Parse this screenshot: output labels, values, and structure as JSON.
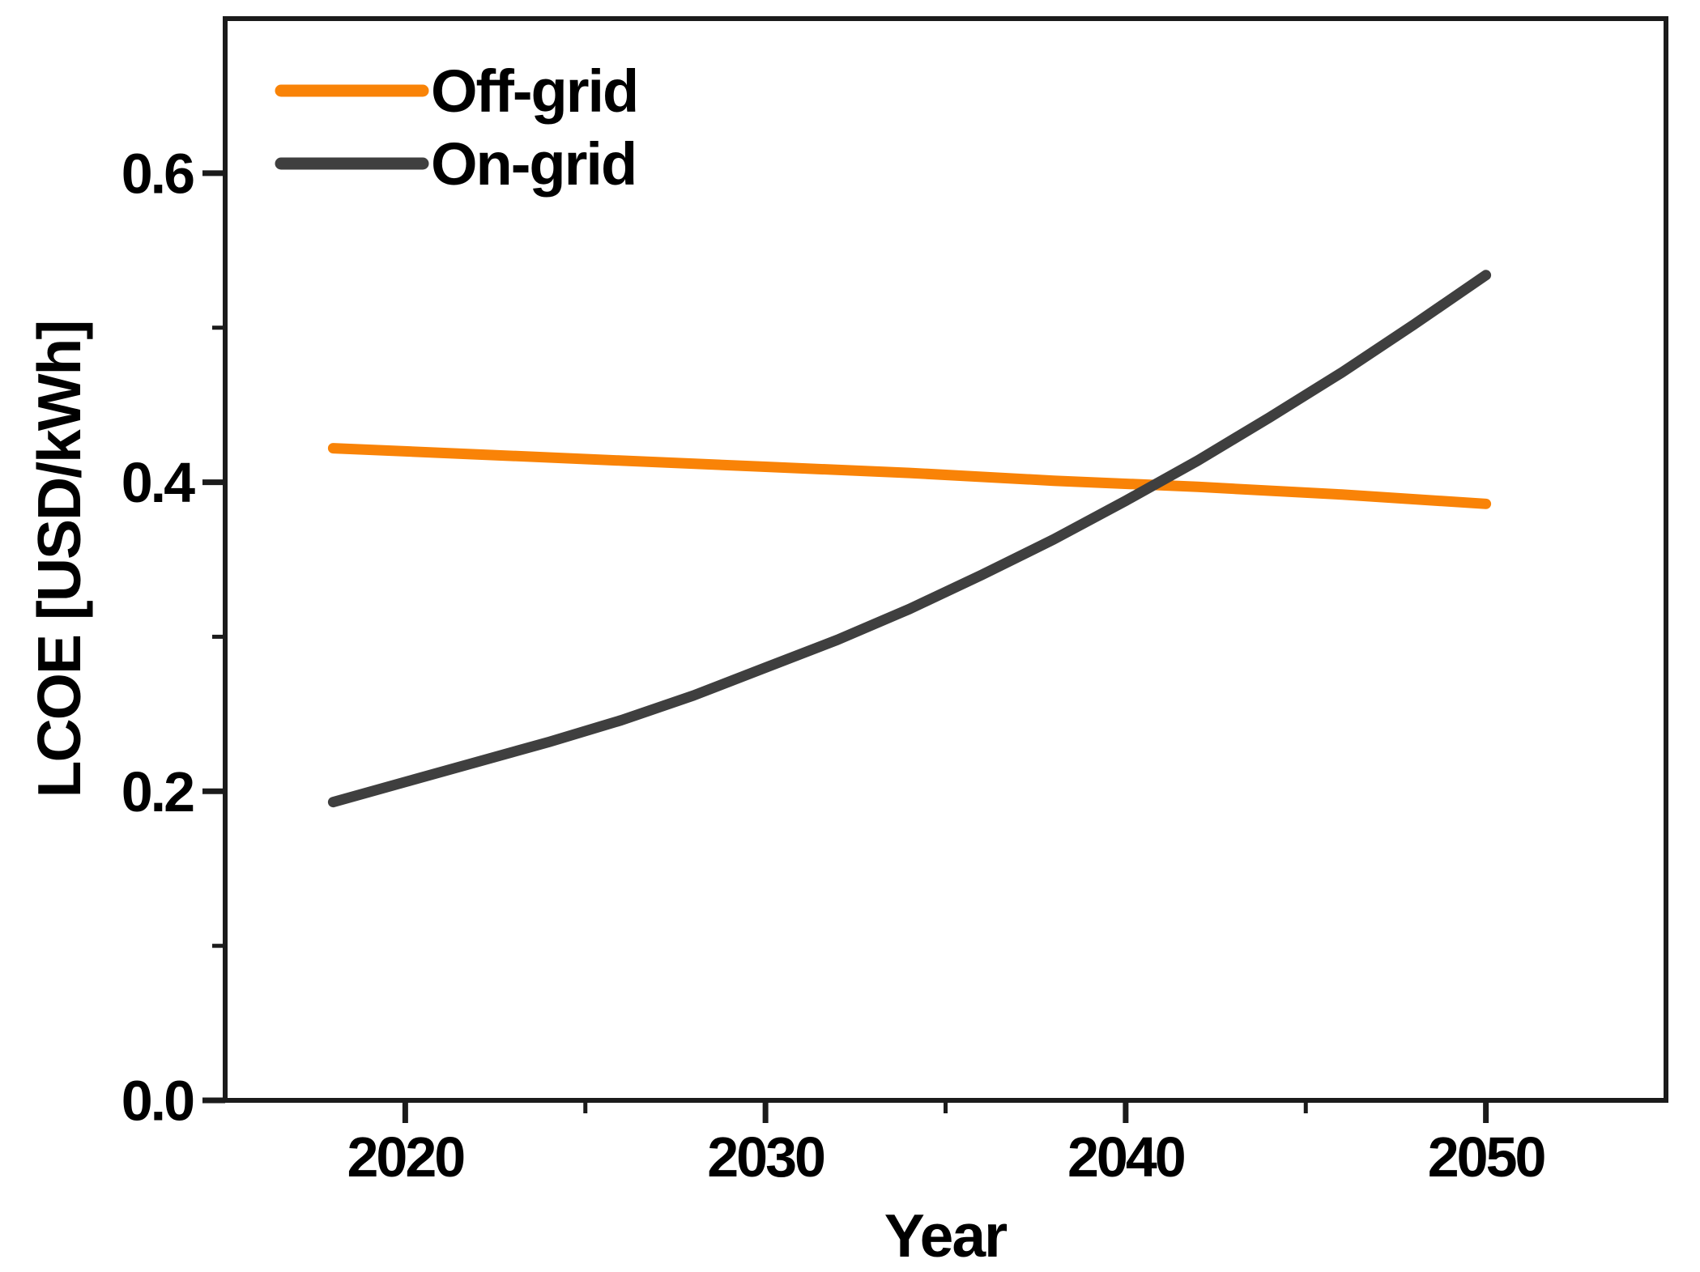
{
  "chart_data": {
    "type": "line",
    "title": "",
    "xlabel": "Year",
    "ylabel": "LCOE [USD/kWh]",
    "xlim": [
      2015,
      2055
    ],
    "ylim": [
      0.0,
      0.7
    ],
    "grid": false,
    "x_major_ticks": {
      "values": [
        2020,
        2030,
        2040,
        2050
      ],
      "labels": [
        "2020",
        "2030",
        "2040",
        "2050"
      ]
    },
    "x_minor_ticks": [
      2025,
      2035,
      2045
    ],
    "y_major_ticks": {
      "values": [
        0.0,
        0.2,
        0.4,
        0.6
      ],
      "labels": [
        "0.0",
        "0.2",
        "0.4",
        "0.6"
      ]
    },
    "y_minor_ticks": [
      0.1,
      0.3,
      0.5
    ],
    "legend": {
      "position": "top-left",
      "entries": [
        "Off-grid",
        "On-grid"
      ]
    },
    "series": [
      {
        "name": "Off-grid",
        "color": "#F98307",
        "x": [
          2018,
          2022,
          2026,
          2030,
          2034,
          2038,
          2042,
          2046,
          2050
        ],
        "y": [
          0.422,
          0.418,
          0.414,
          0.41,
          0.406,
          0.401,
          0.397,
          0.392,
          0.386
        ]
      },
      {
        "name": "On-grid",
        "color": "#3F3F3F",
        "x": [
          2018,
          2020,
          2022,
          2024,
          2026,
          2028,
          2030,
          2032,
          2034,
          2036,
          2038,
          2040,
          2042,
          2044,
          2046,
          2048,
          2050
        ],
        "y": [
          0.193,
          0.206,
          0.219,
          0.232,
          0.246,
          0.262,
          0.28,
          0.298,
          0.318,
          0.34,
          0.363,
          0.388,
          0.414,
          0.442,
          0.471,
          0.502,
          0.534
        ]
      }
    ],
    "colors": {
      "axis": "#1B1B1B",
      "text": "#000000",
      "background": "#FFFFFF"
    }
  }
}
